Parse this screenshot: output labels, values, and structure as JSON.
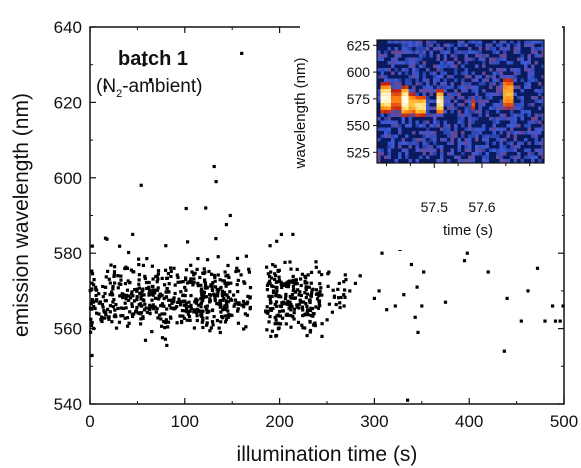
{
  "chart_data": [
    {
      "type": "scatter",
      "xlabel": "illumination time (s)",
      "ylabel": "emission wavelength (nm)",
      "xlim": [
        0,
        500
      ],
      "ylim": [
        540,
        640
      ],
      "xticks": [
        "0",
        "100",
        "200",
        "300",
        "400",
        "500"
      ],
      "yticks": [
        "540",
        "560",
        "580",
        "600",
        "620",
        "640"
      ],
      "annotation_title": "batch 1",
      "annotation_parts": [
        "(N",
        "2",
        "-ambient)"
      ],
      "grid": false,
      "marker_color": "#000000",
      "clusters": [
        {
          "x_range": [
            0,
            150
          ],
          "y_center": 568,
          "y_spread": 7,
          "count": 520
        },
        {
          "x_range": [
            150,
            170
          ],
          "y_center": 568,
          "y_spread": 6,
          "count": 40
        },
        {
          "x_range": [
            185,
            245
          ],
          "y_center": 568,
          "y_spread": 7,
          "count": 240
        },
        {
          "x_range": [
            250,
            270
          ],
          "y_center": 569,
          "y_spread": 6,
          "count": 20
        }
      ],
      "points": [
        [
          16,
          624
        ],
        [
          57,
          630
        ],
        [
          64,
          626
        ],
        [
          160,
          633
        ],
        [
          131,
          603
        ],
        [
          54,
          598
        ],
        [
          133,
          599
        ],
        [
          122,
          592
        ],
        [
          148,
          590
        ],
        [
          190,
          582
        ],
        [
          45,
          585
        ],
        [
          80,
          582
        ],
        [
          103,
          583
        ],
        [
          214,
          585
        ],
        [
          228,
          582
        ],
        [
          280,
          572
        ],
        [
          300,
          568
        ],
        [
          305,
          570
        ],
        [
          308,
          580
        ],
        [
          313,
          565
        ],
        [
          322,
          566
        ],
        [
          327,
          581
        ],
        [
          331,
          569
        ],
        [
          337,
          588
        ],
        [
          339,
          577
        ],
        [
          343,
          563
        ],
        [
          345,
          571
        ],
        [
          346,
          559
        ],
        [
          350,
          566
        ],
        [
          352,
          575
        ],
        [
          375,
          567
        ],
        [
          395,
          578
        ],
        [
          398,
          580
        ],
        [
          420,
          575
        ],
        [
          435,
          582
        ],
        [
          437,
          554
        ],
        [
          440,
          568
        ],
        [
          455,
          562
        ],
        [
          462,
          570
        ],
        [
          472,
          576
        ],
        [
          480,
          562
        ],
        [
          485,
          588
        ],
        [
          488,
          566
        ],
        [
          491,
          562
        ],
        [
          493,
          595
        ],
        [
          496,
          562
        ],
        [
          499,
          566
        ],
        [
          335,
          541
        ],
        [
          440,
          598
        ],
        [
          270,
          573
        ],
        [
          263,
          572
        ],
        [
          268,
          566
        ],
        [
          274,
          570
        ],
        [
          285,
          574
        ]
      ]
    },
    {
      "type": "heatmap",
      "xlabel": "time (s)",
      "ylabel": "wavelength (nm)",
      "xticks": [
        "57.5",
        "57.6"
      ],
      "yticks": [
        "525",
        "550",
        "575",
        "600",
        "625"
      ],
      "ylim": [
        515,
        630
      ],
      "xlim": [
        57.38,
        57.73
      ],
      "background_color": "#0a1a5e",
      "colormap": [
        "#0a1a5e",
        "#3a5ad8",
        "#c02010",
        "#ff7a10",
        "#ffd040",
        "#fffbe8"
      ],
      "bursts": [
        {
          "t_start": 57.39,
          "t_end": 57.41,
          "wl_center": 576,
          "wl_half": 13,
          "intensity": 0.95
        },
        {
          "t_start": 57.41,
          "t_end": 57.43,
          "wl_center": 574,
          "wl_half": 11,
          "intensity": 0.55
        },
        {
          "t_start": 57.43,
          "t_end": 57.445,
          "wl_center": 573,
          "wl_half": 13,
          "intensity": 1.0
        },
        {
          "t_start": 57.445,
          "t_end": 57.46,
          "wl_center": 570,
          "wl_half": 10,
          "intensity": 0.75
        },
        {
          "t_start": 57.46,
          "t_end": 57.48,
          "wl_center": 568,
          "wl_half": 9,
          "intensity": 0.85
        },
        {
          "t_start": 57.505,
          "t_end": 57.52,
          "wl_center": 572,
          "wl_half": 11,
          "intensity": 0.9
        },
        {
          "t_start": 57.575,
          "t_end": 57.585,
          "wl_center": 570,
          "wl_half": 6,
          "intensity": 0.5
        },
        {
          "t_start": 57.645,
          "t_end": 57.665,
          "wl_center": 580,
          "wl_half": 14,
          "intensity": 0.7
        }
      ]
    }
  ]
}
